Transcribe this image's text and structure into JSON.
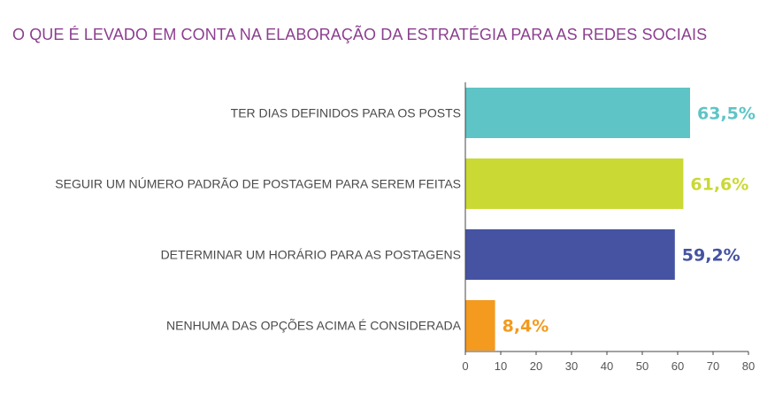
{
  "chart_data": {
    "type": "bar",
    "orientation": "horizontal",
    "title": "O QUE É LEVADO EM CONTA NA ELABORAÇÃO DA ESTRATÉGIA PARA AS REDES SOCIAIS",
    "categories": [
      "TER DIAS DEFINIDOS PARA OS POSTS",
      "SEGUIR UM NÚMERO PADRÃO DE POSTAGEM PARA SEREM FEITAS",
      "DETERMINAR UM HORÁRIO PARA AS POSTAGENS",
      "NENHUMA DAS OPÇÕES ACIMA É CONSIDERADA"
    ],
    "values": [
      63.5,
      61.6,
      59.2,
      8.4
    ],
    "value_labels": [
      "63,5%",
      "61,6%",
      "59,2%",
      "8,4%"
    ],
    "colors": [
      "#5ec4c6",
      "#cad934",
      "#4553a2",
      "#f39a1f"
    ],
    "title_color": "#8c3e8f",
    "xlim": [
      0,
      80
    ],
    "xticks": [
      0,
      10,
      20,
      30,
      40,
      50,
      60,
      70,
      80
    ],
    "xlabel": "",
    "ylabel": "",
    "grid": false,
    "legend": "none"
  }
}
